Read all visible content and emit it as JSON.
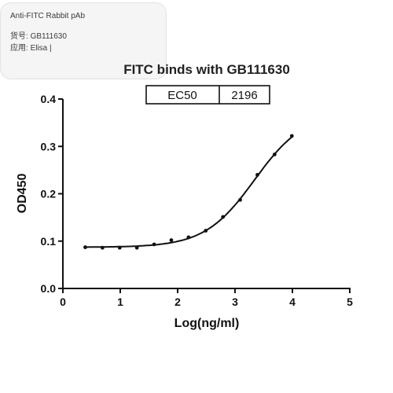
{
  "info_card": {
    "title": "Anti-FITC Rabbit pAb",
    "catalog_label": "货号:",
    "catalog_value": "GB111630",
    "application_label": "应用:",
    "application_value": "Elisa |"
  },
  "chart_data": {
    "type": "scatter",
    "title": "FITC binds with GB111630",
    "xlabel": "Log(ng/ml)",
    "ylabel": "OD450",
    "xlim": [
      0,
      5
    ],
    "ylim": [
      0,
      0.4
    ],
    "x_ticks": [
      0,
      1,
      2,
      3,
      4,
      5
    ],
    "y_ticks": [
      0.0,
      0.1,
      0.2,
      0.3,
      0.4
    ],
    "x_tick_labels": [
      "0",
      "1",
      "2",
      "3",
      "4",
      "5"
    ],
    "y_tick_labels": [
      "0.0",
      "0.1",
      "0.2",
      "0.3",
      "0.4"
    ],
    "grid": false,
    "legend": "none",
    "points": {
      "x": [
        0.39,
        0.69,
        0.99,
        1.29,
        1.59,
        1.89,
        2.19,
        2.49,
        2.79,
        3.09,
        3.39,
        3.69,
        3.99
      ],
      "y": [
        0.087,
        0.086,
        0.086,
        0.086,
        0.093,
        0.102,
        0.108,
        0.122,
        0.151,
        0.187,
        0.24,
        0.283,
        0.322
      ]
    },
    "fit_curve": {
      "model": "4PL",
      "bottom": 0.087,
      "top": 0.372,
      "log_ec50": 3.3416,
      "hill_slope": 1.0,
      "x_range": [
        0.39,
        3.99
      ]
    },
    "ec50_table": {
      "label": "EC50",
      "value": "2196"
    },
    "colors": {
      "marks": "#111111",
      "axes": "#111111"
    }
  }
}
